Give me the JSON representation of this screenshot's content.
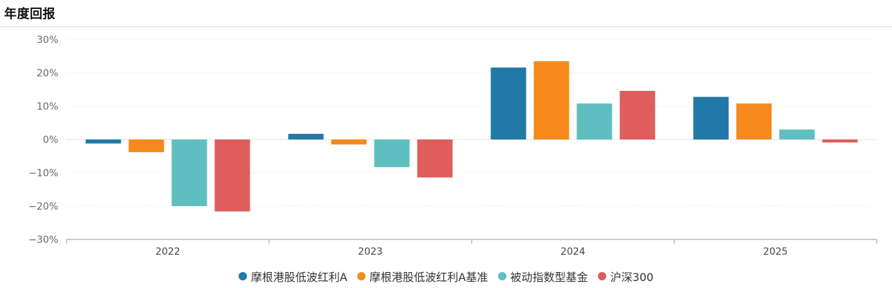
{
  "header": {
    "title": "年度回报"
  },
  "chart_data": {
    "type": "bar",
    "title": "年度回报",
    "categories": [
      "2022",
      "2023",
      "2024",
      "2025"
    ],
    "series": [
      {
        "name": "摩根港股低波红利A",
        "color": "#2278a6",
        "values": [
          -1.2,
          1.7,
          21.6,
          12.8
        ]
      },
      {
        "name": "摩根港股低波红利A基准",
        "color": "#f5891c",
        "values": [
          -3.8,
          -1.5,
          23.5,
          10.8
        ]
      },
      {
        "name": "被动指数型基金",
        "color": "#5fbfc0",
        "values": [
          -20.0,
          -8.3,
          10.8,
          3.0
        ]
      },
      {
        "name": "沪深300",
        "color": "#e05d5d",
        "values": [
          -21.6,
          -11.4,
          14.6,
          -0.9
        ]
      }
    ],
    "ylim": [
      -30,
      30
    ],
    "yticks": [
      30,
      20,
      10,
      0,
      -10,
      -20,
      -30
    ],
    "ytick_labels": [
      "30%",
      "20%",
      "10%",
      "0%",
      "−10%",
      "−20%",
      "−30%"
    ],
    "grid": true,
    "legend_position": "bottom"
  }
}
